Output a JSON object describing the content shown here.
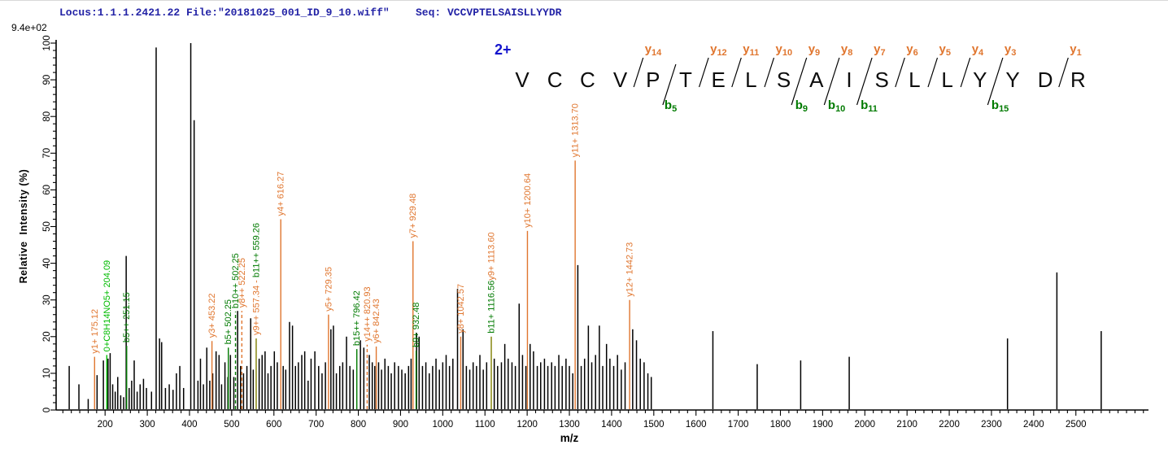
{
  "header": {
    "locus_file": "Locus:1.1.1.2421.22 File:\"20181025_001_ID_9_10.wiff\"",
    "seq_label": "Seq: VCCVPTELSAISLLYYDR",
    "intensity_scale": "9.4e+02"
  },
  "colors": {
    "y_ion": "#e0762f",
    "b_ion": "#007a00",
    "special_ion": "#00bb00",
    "overlap": "#7f7f00",
    "peak": "#000000",
    "axis": "#000000",
    "header_text": "#2323a6",
    "charge_label": "#1414cc"
  },
  "sequence": {
    "charge_label": "2+",
    "peptide": "VCCVPTELSAISLLYYDR",
    "y_ions": [
      {
        "n": 14,
        "after": 4
      },
      {
        "n": 12,
        "after": 6
      },
      {
        "n": 11,
        "after": 7
      },
      {
        "n": 10,
        "after": 8
      },
      {
        "n": 9,
        "after": 9
      },
      {
        "n": 8,
        "after": 10
      },
      {
        "n": 7,
        "after": 11
      },
      {
        "n": 6,
        "after": 12
      },
      {
        "n": 5,
        "after": 13
      },
      {
        "n": 4,
        "after": 14
      },
      {
        "n": 3,
        "after": 15
      },
      {
        "n": 1,
        "after": 17
      }
    ],
    "b_ions": [
      {
        "n": 5,
        "after": 5
      },
      {
        "n": 9,
        "after": 9
      },
      {
        "n": 10,
        "after": 10
      },
      {
        "n": 11,
        "after": 11
      },
      {
        "n": 15,
        "after": 15
      }
    ]
  },
  "chart_data": {
    "type": "bar",
    "subtype": "ms2-spectrum",
    "xlabel": "m/z",
    "ylabel": "Relative  Intensity (%)",
    "intensity_scale": "9.4e+02",
    "xlim": [
      84,
      2672
    ],
    "ylim": [
      0,
      100
    ],
    "x_major_ticks": [
      200,
      300,
      400,
      500,
      600,
      700,
      800,
      900,
      1000,
      1100,
      1200,
      1300,
      1400,
      1500,
      1600,
      1700,
      1800,
      1900,
      2000,
      2100,
      2200,
      2300,
      2400,
      2500
    ],
    "x_minor_step": 20,
    "y_major_ticks": [
      0,
      10,
      20,
      30,
      40,
      50,
      60,
      70,
      80,
      90,
      100
    ],
    "y_minor_step": 2,
    "grid": false,
    "annotated_peaks": [
      {
        "parts": [
          {
            "text": "y1+ 175.12",
            "ion": "y"
          }
        ],
        "mz": 175.12,
        "pct": 14.5
      },
      {
        "parts": [
          {
            "text": "0+C8H14NO5+ 204.09",
            "ion": "special"
          }
        ],
        "mz": 204.09,
        "pct": 15
      },
      {
        "parts": [
          {
            "text": "b5++ 251.15",
            "ion": "b"
          }
        ],
        "mz": 251.15,
        "pct": 17.5
      },
      {
        "parts": [
          {
            "text": "y3+ 453.22",
            "ion": "y"
          }
        ],
        "mz": 453.22,
        "pct": 18.8
      },
      {
        "parts": [
          {
            "text": "b5+ 502.25",
            "ion": "b"
          }
        ],
        "mz": 502.25,
        "pos": 492,
        "pct": 17
      },
      {
        "parts": [
          {
            "text": "b10++ 502.25",
            "ion": "b"
          }
        ],
        "mz": 502.25,
        "pos": 509,
        "pct": 26.8,
        "dashed": true
      },
      {
        "parts": [
          {
            "text": "y8++ 522.25",
            "ion": "y"
          }
        ],
        "mz": 522.25,
        "pos": 524,
        "pct": 27,
        "dashed": true
      },
      {
        "parts": [
          {
            "text": "y9++ 557.34 - ",
            "ion": "y"
          },
          {
            "text": "b11++ 559.26",
            "ion": "b"
          }
        ],
        "mz": 557.34,
        "pos": 558,
        "pct": 19.5,
        "line": "overlap"
      },
      {
        "parts": [
          {
            "text": "y4+ 616.27",
            "ion": "y"
          }
        ],
        "mz": 616.27,
        "pct": 52
      },
      {
        "parts": [
          {
            "text": "y5+ 729.35",
            "ion": "y"
          }
        ],
        "mz": 729.35,
        "pct": 26
      },
      {
        "parts": [
          {
            "text": "b15++ 796.42",
            "ion": "b"
          }
        ],
        "mz": 796.42,
        "pct": 16.6
      },
      {
        "parts": [
          {
            "text": "y14++ 820.93",
            "ion": "y"
          }
        ],
        "mz": 820.93,
        "pct": 17.8,
        "dashed": true
      },
      {
        "parts": [
          {
            "text": "y6+ 842.43",
            "ion": "y"
          }
        ],
        "mz": 842.43,
        "pct": 17.3
      },
      {
        "parts": [
          {
            "text": "y7+ 929.48",
            "ion": "y"
          }
        ],
        "mz": 929.48,
        "pct": 46
      },
      {
        "parts": [
          {
            "text": "b9+ 932.48",
            "ion": "b"
          }
        ],
        "mz": 932.48,
        "pos": 937,
        "pct": 16.2
      },
      {
        "parts": [
          {
            "text": "y8+ 1042.57",
            "ion": "y"
          }
        ],
        "mz": 1042.57,
        "pct": 20
      },
      {
        "parts": [
          {
            "text": "b11+ 1116.56",
            "ion": "b"
          },
          {
            "text": "y9+ 1113.60",
            "ion": "y"
          }
        ],
        "mz": 1113.6,
        "pos": 1115,
        "pct": 20,
        "line": "overlap"
      },
      {
        "parts": [
          {
            "text": "y10+ 1200.64",
            "ion": "y"
          }
        ],
        "mz": 1200.64,
        "pct": 48.8
      },
      {
        "parts": [
          {
            "text": "y11+ 1313.70",
            "ion": "y"
          }
        ],
        "mz": 1313.7,
        "pct": 68
      },
      {
        "parts": [
          {
            "text": "y12+ 1442.73",
            "ion": "y"
          }
        ],
        "mz": 1442.73,
        "pct": 30
      }
    ],
    "noise_peaks": [
      [
        115,
        12
      ],
      [
        138,
        7
      ],
      [
        160,
        3
      ],
      [
        181,
        9.5
      ],
      [
        196,
        13.5
      ],
      [
        207,
        14
      ],
      [
        212,
        15.5
      ],
      [
        218,
        7
      ],
      [
        224,
        5
      ],
      [
        230,
        9
      ],
      [
        237,
        4
      ],
      [
        244,
        3.5
      ],
      [
        250,
        42
      ],
      [
        257,
        6
      ],
      [
        263,
        8
      ],
      [
        269,
        13.5
      ],
      [
        276,
        5
      ],
      [
        283,
        7
      ],
      [
        291,
        8.5
      ],
      [
        298,
        6
      ],
      [
        310,
        5
      ],
      [
        321,
        98.8
      ],
      [
        329,
        19.5
      ],
      [
        334,
        18.5
      ],
      [
        343,
        6
      ],
      [
        352,
        7
      ],
      [
        361,
        5.5
      ],
      [
        369,
        10
      ],
      [
        377,
        12
      ],
      [
        386,
        6
      ],
      [
        403,
        100
      ],
      [
        411,
        79
      ],
      [
        420,
        8
      ],
      [
        426,
        14
      ],
      [
        433,
        7
      ],
      [
        441,
        17
      ],
      [
        448,
        8
      ],
      [
        455,
        10
      ],
      [
        463,
        16
      ],
      [
        470,
        15
      ],
      [
        476,
        7
      ],
      [
        484,
        13
      ],
      [
        491,
        9
      ],
      [
        497,
        15
      ],
      [
        505,
        9
      ],
      [
        514,
        27
      ],
      [
        521,
        12
      ],
      [
        528,
        10
      ],
      [
        536,
        12
      ],
      [
        545,
        25
      ],
      [
        551,
        11
      ],
      [
        565,
        14
      ],
      [
        572,
        15
      ],
      [
        579,
        16
      ],
      [
        586,
        10
      ],
      [
        593,
        12
      ],
      [
        601,
        16
      ],
      [
        608,
        13
      ],
      [
        622,
        12
      ],
      [
        628,
        11
      ],
      [
        637,
        24
      ],
      [
        644,
        23
      ],
      [
        651,
        12
      ],
      [
        658,
        13
      ],
      [
        666,
        15
      ],
      [
        673,
        16
      ],
      [
        681,
        8
      ],
      [
        688,
        14
      ],
      [
        697,
        16
      ],
      [
        706,
        12
      ],
      [
        714,
        10
      ],
      [
        722,
        13
      ],
      [
        735,
        22
      ],
      [
        741,
        23
      ],
      [
        748,
        10
      ],
      [
        756,
        12
      ],
      [
        763,
        13
      ],
      [
        772,
        20
      ],
      [
        780,
        12
      ],
      [
        788,
        11
      ],
      [
        805,
        19
      ],
      [
        813,
        17
      ],
      [
        826,
        15
      ],
      [
        833,
        13
      ],
      [
        839,
        12
      ],
      [
        848,
        13
      ],
      [
        855,
        11
      ],
      [
        863,
        14
      ],
      [
        871,
        12
      ],
      [
        878,
        10
      ],
      [
        886,
        13
      ],
      [
        895,
        12
      ],
      [
        903,
        11
      ],
      [
        911,
        10
      ],
      [
        919,
        12
      ],
      [
        925,
        14
      ],
      [
        938,
        21
      ],
      [
        944,
        20
      ],
      [
        952,
        12
      ],
      [
        960,
        13
      ],
      [
        968,
        10
      ],
      [
        976,
        12
      ],
      [
        984,
        14
      ],
      [
        992,
        11
      ],
      [
        1000,
        13
      ],
      [
        1008,
        15
      ],
      [
        1016,
        12
      ],
      [
        1024,
        14
      ],
      [
        1035,
        33
      ],
      [
        1048,
        22
      ],
      [
        1056,
        12
      ],
      [
        1064,
        11
      ],
      [
        1072,
        13
      ],
      [
        1080,
        12
      ],
      [
        1088,
        15
      ],
      [
        1096,
        11
      ],
      [
        1104,
        13
      ],
      [
        1122,
        14
      ],
      [
        1130,
        12
      ],
      [
        1139,
        13
      ],
      [
        1147,
        18
      ],
      [
        1155,
        14
      ],
      [
        1164,
        13
      ],
      [
        1172,
        12
      ],
      [
        1181,
        29
      ],
      [
        1189,
        15
      ],
      [
        1197,
        12
      ],
      [
        1207,
        18
      ],
      [
        1215,
        16
      ],
      [
        1224,
        12
      ],
      [
        1232,
        13
      ],
      [
        1241,
        14
      ],
      [
        1249,
        12
      ],
      [
        1258,
        13
      ],
      [
        1266,
        12
      ],
      [
        1275,
        15
      ],
      [
        1283,
        12
      ],
      [
        1292,
        14
      ],
      [
        1300,
        12
      ],
      [
        1308,
        10
      ],
      [
        1320,
        39.5
      ],
      [
        1328,
        12
      ],
      [
        1336,
        14
      ],
      [
        1345,
        23
      ],
      [
        1353,
        13
      ],
      [
        1362,
        15
      ],
      [
        1371,
        23
      ],
      [
        1379,
        12
      ],
      [
        1388,
        18
      ],
      [
        1396,
        14
      ],
      [
        1405,
        12
      ],
      [
        1414,
        15
      ],
      [
        1423,
        11
      ],
      [
        1432,
        13
      ],
      [
        1450,
        22
      ],
      [
        1459,
        19
      ],
      [
        1468,
        14
      ],
      [
        1477,
        13
      ],
      [
        1486,
        10
      ],
      [
        1494,
        9
      ],
      [
        1640,
        21.5
      ],
      [
        1745,
        12.5
      ],
      [
        1848,
        13.5
      ],
      [
        1963,
        14.5
      ],
      [
        2338,
        19.5
      ],
      [
        2455,
        37.5
      ],
      [
        2560,
        21.5
      ]
    ]
  }
}
